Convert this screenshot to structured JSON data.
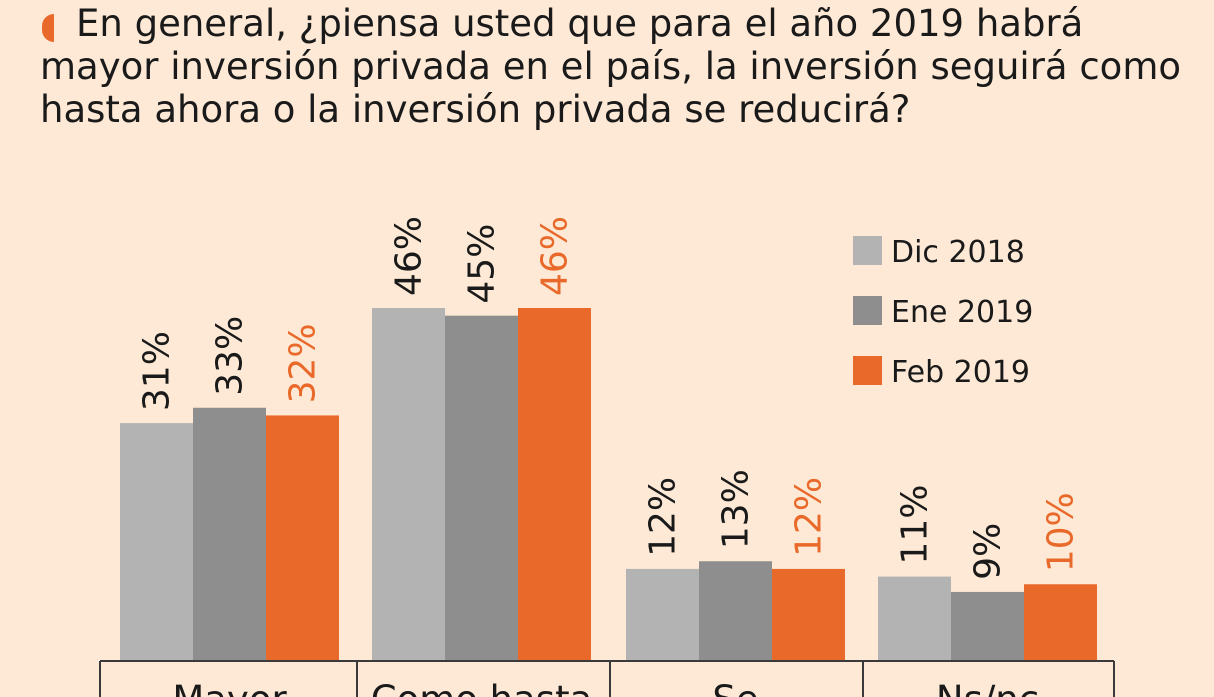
{
  "title": "En general, ¿piensa usted que para el año 2019 habrá mayor inversión privada en el país, la inversión seguirá como hasta ahora o la inversión privada se reducirá?",
  "colors": {
    "background": "#fde9d5",
    "accent": "#e9692a",
    "dic2018": "#b3b3b3",
    "ene2019": "#8e8e8e",
    "feb2019": "#e9692a",
    "text": "#1a1a1a"
  },
  "chart_data": {
    "type": "bar",
    "title": "En general, ¿piensa usted que para el año 2019 habrá mayor inversión privada en el país, la inversión seguirá como hasta ahora o la inversión privada se reducirá?",
    "categories": [
      "Mayor",
      "Como hasta",
      "Se",
      "Ns/nc"
    ],
    "series": [
      {
        "name": "Dic 2018",
        "color": "#b3b3b3",
        "values": [
          31,
          46,
          12,
          11
        ]
      },
      {
        "name": "Ene 2019",
        "color": "#8e8e8e",
        "values": [
          33,
          45,
          13,
          9
        ]
      },
      {
        "name": "Feb 2019",
        "color": "#e9692a",
        "values": [
          32,
          46,
          12,
          10
        ]
      }
    ],
    "value_suffix": "%",
    "ylim": [
      0,
      46
    ],
    "grid": false,
    "legend": "top-right",
    "xlabel": "",
    "ylabel": ""
  }
}
